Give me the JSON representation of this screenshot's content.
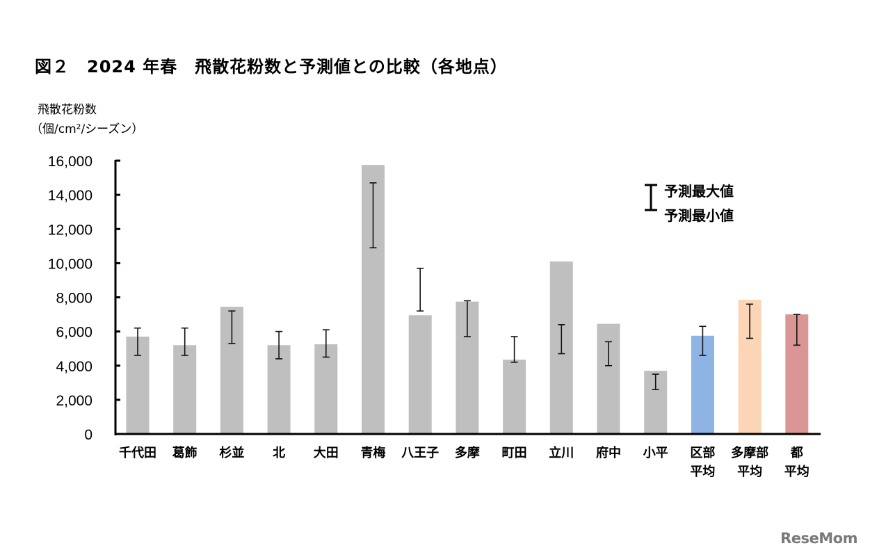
{
  "chart_data": {
    "type": "bar",
    "title": "図２　2024 年春　飛散花粉数と予測値との比較（各地点）",
    "ylabel_line1": "飛散花粉数",
    "ylabel_line2": "（個/cm²/シーズン）",
    "ylim": [
      0,
      16000
    ],
    "yticks": [
      "0",
      "2,000",
      "4,000",
      "6,000",
      "8,000",
      "10,000",
      "12,000",
      "14,000",
      "16,000"
    ],
    "ytick_values": [
      0,
      2000,
      4000,
      6000,
      8000,
      10000,
      12000,
      14000,
      16000
    ],
    "grid": false,
    "legend": {
      "placement": "top-right",
      "max_label": "予測最大値",
      "min_label": "予測最小値"
    },
    "categories": [
      "千代田",
      "葛飾",
      "杉並",
      "北",
      "大田",
      "青梅",
      "八王子",
      "多摩",
      "町田",
      "立川",
      "府中",
      "小平",
      "区部\n平均",
      "多摩部\n平均",
      "都\n平均"
    ],
    "values": [
      5700,
      5200,
      7450,
      5200,
      5250,
      15750,
      6950,
      7750,
      4350,
      10100,
      6450,
      3700,
      5750,
      7850,
      7000
    ],
    "predicted_max": [
      6200,
      6200,
      7200,
      6000,
      6100,
      14700,
      9700,
      7800,
      5700,
      6400,
      5400,
      3500,
      6300,
      7600,
      7000
    ],
    "predicted_min": [
      4600,
      4600,
      5300,
      4400,
      4500,
      10900,
      7200,
      5700,
      4200,
      4700,
      4000,
      2600,
      4600,
      5600,
      5200
    ],
    "colors": [
      "#bfbfbf",
      "#bfbfbf",
      "#bfbfbf",
      "#bfbfbf",
      "#bfbfbf",
      "#bfbfbf",
      "#bfbfbf",
      "#bfbfbf",
      "#bfbfbf",
      "#bfbfbf",
      "#bfbfbf",
      "#bfbfbf",
      "#8eb4e3",
      "#fbd5b5",
      "#d99694"
    ]
  },
  "logo": "ReseMom"
}
